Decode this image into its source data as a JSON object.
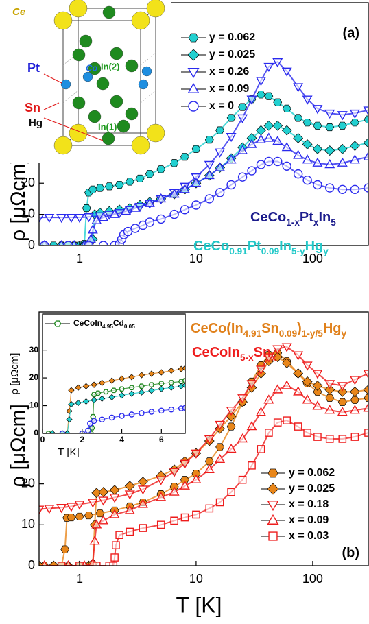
{
  "crystal": {
    "labels": [
      "Ce",
      "Co",
      "Pt",
      "In(2)",
      "Sn",
      "Hg",
      "In(1)"
    ]
  },
  "chart_data": [
    {
      "type": "scatter",
      "panel_label": "(a)",
      "ylabel": "ρ [μΩcm]",
      "log_x": true,
      "xlim": [
        0.45,
        300
      ],
      "ylim": [
        0,
        78
      ],
      "xticks": [
        1,
        10,
        100
      ],
      "yticks": [
        0,
        10,
        20
      ],
      "annotations": [
        {
          "parts": [
            "CeCo",
            "1-x",
            "Pt",
            "x",
            "In",
            "5"
          ],
          "color": "#1c1c8c"
        },
        {
          "parts": [
            "CeCo",
            "0.91",
            "Pt",
            "0.09",
            "In",
            "5-y",
            "Hg",
            "y"
          ],
          "color": "#22c8c8"
        }
      ],
      "series": [
        {
          "name": "y = 0.062",
          "color": "#22d0d0",
          "marker": "hexagon",
          "filled": true,
          "x": [
            0.5,
            0.6,
            0.7,
            0.8,
            0.9,
            1.0,
            1.1,
            1.15,
            1.2,
            1.3,
            1.5,
            1.8,
            2.2,
            2.7,
            3.3,
            4,
            5,
            6.5,
            8,
            10,
            13,
            16,
            20,
            25,
            30,
            36,
            42,
            50,
            60,
            75,
            90,
            110,
            140,
            180,
            230,
            300
          ],
          "values": [
            0,
            0,
            0,
            0,
            0,
            0,
            0.5,
            12,
            17,
            18,
            18.5,
            19,
            19.5,
            20.5,
            21.5,
            23,
            24.5,
            26.5,
            28.5,
            31,
            34,
            37,
            41,
            44.5,
            47,
            48.5,
            48,
            46,
            44,
            41,
            39.5,
            38.5,
            38,
            38.5,
            39.5,
            40.5
          ]
        },
        {
          "name": "y = 0.025",
          "color": "#22d0d0",
          "marker": "diamond",
          "filled": true,
          "x": [
            0.5,
            0.7,
            0.9,
            1.1,
            1.2,
            1.3,
            1.35,
            1.5,
            1.8,
            2.2,
            2.7,
            3.3,
            4,
            5,
            6.5,
            8,
            10,
            13,
            16,
            20,
            25,
            30,
            36,
            42,
            50,
            60,
            75,
            90,
            110,
            140,
            180,
            230,
            300
          ],
          "values": [
            0,
            0,
            0,
            0,
            0.5,
            2,
            10,
            10.5,
            11,
            11.5,
            12,
            13,
            14,
            15,
            16.5,
            18,
            20,
            22.5,
            25,
            28,
            31.5,
            34.5,
            37,
            38.5,
            38.5,
            37,
            34.5,
            32.5,
            31,
            30.5,
            31,
            32,
            33
          ]
        },
        {
          "name": "x = 0.26",
          "color": "#2a2aee",
          "marker": "tri-down",
          "filled": false,
          "x": [
            0.45,
            0.55,
            0.7,
            0.85,
            1.0,
            1.2,
            1.5,
            1.8,
            2.2,
            2.7,
            3.3,
            4,
            5,
            6.5,
            8,
            10,
            13,
            16,
            20,
            25,
            30,
            36,
            42,
            50,
            60,
            75,
            90,
            110,
            140,
            180,
            230,
            300
          ],
          "values": [
            9,
            9,
            9,
            9,
            9,
            9.2,
            9.5,
            10,
            10.5,
            11.5,
            12.5,
            13.5,
            15,
            17,
            19,
            22,
            26,
            30,
            35,
            41,
            47,
            53,
            57.5,
            59,
            56,
            51,
            47,
            44,
            42.5,
            42,
            42.5,
            43.5
          ]
        },
        {
          "name": "x = 0.09",
          "color": "#2a2aee",
          "marker": "tri-up",
          "filled": false,
          "x": [
            0.5,
            0.7,
            0.9,
            1.1,
            1.2,
            1.25,
            1.3,
            1.4,
            1.6,
            2,
            2.5,
            3,
            4,
            5,
            6.5,
            8,
            10,
            13,
            16,
            20,
            25,
            30,
            36,
            42,
            50,
            60,
            75,
            90,
            110,
            140,
            180,
            230,
            300
          ],
          "values": [
            0,
            0,
            0,
            0,
            0.5,
            2,
            5,
            8,
            9,
            10,
            11,
            12,
            13.5,
            15,
            16.5,
            18,
            20,
            22.5,
            25,
            27.5,
            30.5,
            32.5,
            34,
            34.5,
            33.5,
            31.5,
            29,
            27.5,
            26.5,
            26,
            26.5,
            27.5,
            28.5
          ]
        },
        {
          "name": "x = 0",
          "color": "#2a2aee",
          "marker": "circle",
          "filled": false,
          "x": [
            0.5,
            0.8,
            1.2,
            1.6,
            2,
            2.2,
            2.3,
            2.4,
            2.6,
            3,
            3.5,
            4,
            5,
            6.5,
            8,
            10,
            13,
            16,
            20,
            25,
            30,
            36,
            42,
            50,
            60,
            75,
            90,
            110,
            140,
            180,
            230,
            300
          ],
          "values": [
            0,
            0,
            0,
            0,
            0,
            0.5,
            2,
            3.5,
            4.5,
            5.5,
            6.5,
            7.5,
            8.5,
            10,
            11.5,
            13,
            15,
            17,
            19.5,
            22,
            24,
            26,
            27,
            27,
            25.5,
            23,
            21,
            19.5,
            18.5,
            18,
            18,
            18.5
          ]
        }
      ]
    },
    {
      "type": "scatter",
      "panel_label": "(b)",
      "ylabel": "ρ [μΩcm]",
      "xlabel": "T [K]",
      "log_x": true,
      "xlim": [
        0.45,
        300
      ],
      "ylim": [
        0,
        62
      ],
      "xticks": [
        1,
        10,
        100
      ],
      "yticks": [
        0,
        10,
        20
      ],
      "annotations": [
        {
          "parts": [
            "CeCo(In",
            "4.91",
            "Sn",
            "0.09",
            ")",
            "1-y/5",
            "Hg",
            "y"
          ],
          "color": "#e0801a"
        },
        {
          "parts": [
            "CeCoIn",
            "5-x",
            "Sn",
            "x"
          ],
          "color": "#ee1c1c"
        }
      ],
      "series": [
        {
          "name": "y = 0.062",
          "color": "#e8861a",
          "marker": "hexagon",
          "filled": true,
          "x": [
            0.5,
            0.6,
            0.7,
            0.75,
            0.78,
            0.85,
            1,
            1.2,
            1.5,
            2,
            2.7,
            3.5,
            5,
            6.5,
            8,
            10,
            13,
            16,
            20,
            25,
            30,
            36,
            42,
            50,
            60,
            75,
            90,
            110,
            140,
            180,
            230,
            300
          ],
          "values": [
            0,
            0,
            0,
            4,
            11.7,
            11.8,
            12,
            12.3,
            12.8,
            13.5,
            14.5,
            15.5,
            17.5,
            19.3,
            21,
            22.5,
            25.5,
            29,
            34,
            40,
            45,
            49,
            51.5,
            52,
            50,
            47,
            44.5,
            42.5,
            41,
            40,
            40.5,
            41
          ]
        },
        {
          "name": "y = 0.025",
          "color": "#e8861a",
          "marker": "diamond",
          "filled": true,
          "x": [
            0.45,
            0.6,
            0.8,
            1,
            1.2,
            1.3,
            1.35,
            1.4,
            1.6,
            2,
            2.7,
            3.5,
            5,
            6.5,
            8,
            10,
            13,
            16,
            20,
            25,
            30,
            36,
            42,
            50,
            60,
            75,
            90,
            110,
            140,
            180,
            230,
            300
          ],
          "values": [
            0,
            0,
            0,
            0,
            0,
            0.5,
            10,
            17.8,
            18,
            18.5,
            19.5,
            20.5,
            22,
            23.5,
            25.5,
            27.5,
            30.5,
            33.5,
            36.5,
            40,
            43.5,
            47,
            50,
            51,
            49.5,
            47,
            45,
            44,
            43,
            42.5,
            42.5,
            43
          ]
        },
        {
          "name": "x = 0.18",
          "color": "#ee1c1c",
          "marker": "tri-down",
          "filled": false,
          "x": [
            0.45,
            0.55,
            0.7,
            0.85,
            1,
            1.3,
            1.6,
            2,
            2.7,
            3.5,
            5,
            6.5,
            8,
            10,
            13,
            16,
            20,
            25,
            30,
            36,
            42,
            50,
            60,
            75,
            90,
            110,
            140,
            180,
            230,
            300
          ],
          "values": [
            13.8,
            14,
            14.2,
            14.5,
            15,
            15.5,
            16,
            16.7,
            17.5,
            18.7,
            21,
            23,
            25,
            27.5,
            31,
            34.5,
            38,
            41,
            44.5,
            48,
            51,
            53,
            53.5,
            51.5,
            49,
            47,
            44.5,
            44,
            45.5,
            47
          ]
        },
        {
          "name": "x = 0.09",
          "color": "#ee1c1c",
          "marker": "tri-up",
          "filled": false,
          "x": [
            0.5,
            0.8,
            1.1,
            1.3,
            1.35,
            1.4,
            1.6,
            2,
            2.7,
            3.5,
            5,
            6.5,
            8,
            10,
            13,
            16,
            20,
            25,
            30,
            36,
            42,
            50,
            60,
            75,
            90,
            110,
            140,
            180,
            230,
            300
          ],
          "values": [
            0,
            0,
            0,
            0.5,
            6,
            10,
            11,
            12.5,
            13.5,
            15,
            16.7,
            18,
            19.5,
            21,
            23.5,
            26,
            28.5,
            31,
            34,
            37.5,
            40.5,
            43,
            44,
            42.5,
            40.5,
            39,
            38,
            37.5,
            38,
            38.5
          ]
        },
        {
          "name": "x = 0.03",
          "color": "#ee1c1c",
          "marker": "square",
          "filled": false,
          "x": [
            0.7,
            1,
            1.4,
            1.8,
            1.95,
            2,
            2.05,
            2.2,
            2.7,
            3.5,
            5,
            6.5,
            8,
            10,
            13,
            16,
            20,
            25,
            30,
            36,
            42,
            50,
            60,
            75,
            90,
            110,
            140,
            180,
            230,
            300
          ],
          "values": [
            0,
            0,
            0,
            0,
            0,
            2,
            5,
            7.5,
            8.3,
            9.2,
            10,
            11,
            11.8,
            12.5,
            14,
            15.5,
            18,
            21,
            24.5,
            28.5,
            32.5,
            35,
            35.5,
            34,
            32.5,
            31.5,
            31,
            31,
            31.5,
            32.5
          ]
        }
      ]
    },
    {
      "type": "scatter",
      "inset": true,
      "ylabel": "ρ [μΩcm]",
      "xlabel": "T [K]",
      "xlim": [
        0,
        7.2
      ],
      "ylim": [
        0,
        43
      ],
      "xticks": [
        0,
        2,
        4,
        6
      ],
      "yticks": [
        0,
        10,
        20,
        30
      ],
      "series": [
        {
          "name_parts": [
            "CeCoIn",
            "4.95",
            "Cd",
            "0.05"
          ],
          "color": "#228822",
          "marker": "hexagon",
          "filled": false,
          "x": [
            0.3,
            1,
            2,
            2.45,
            2.5,
            2.55,
            2.6,
            2.8,
            3.2,
            3.6,
            4,
            4.5,
            5,
            5.5,
            6,
            6.5,
            7,
            7.2
          ],
          "values": [
            0,
            0,
            0,
            0,
            2,
            6,
            14,
            14.5,
            15,
            15.5,
            16,
            16.5,
            17,
            17.5,
            18,
            18.3,
            18.7,
            19
          ]
        },
        {
          "color": "#e8861a",
          "marker": "diamond",
          "filled": true,
          "x": [
            0.5,
            1,
            1.25,
            1.35,
            1.45,
            1.8,
            2.2,
            2.6,
            3,
            3.5,
            4,
            4.5,
            5,
            5.5,
            6,
            6.5,
            7,
            7.2
          ],
          "values": [
            0,
            0,
            0,
            8,
            15.5,
            16.5,
            17,
            17.5,
            18.2,
            19,
            19.7,
            20.3,
            21,
            21.5,
            22,
            22.6,
            23.2,
            23.5
          ]
        },
        {
          "color": "#22d0d0",
          "marker": "diamond",
          "filled": true,
          "x": [
            0.5,
            1,
            1.25,
            1.35,
            1.45,
            1.8,
            2.2,
            2.6,
            3,
            3.5,
            4,
            4.5,
            5,
            5.5,
            6,
            6.5,
            7,
            7.2
          ],
          "values": [
            0,
            0,
            0,
            5,
            10.5,
            11,
            11.5,
            12,
            12.5,
            13,
            13.7,
            14.3,
            14.8,
            15.4,
            16,
            16.5,
            17,
            17.3
          ]
        },
        {
          "color": "#2a2aee",
          "marker": "circle",
          "filled": false,
          "x": [
            1,
            2,
            2.3,
            2.4,
            2.6,
            3,
            3.5,
            4,
            4.5,
            5,
            5.5,
            6,
            6.5,
            7,
            7.2
          ],
          "values": [
            0,
            0,
            1,
            3.5,
            4.5,
            5,
            5.7,
            6.3,
            6.8,
            7.3,
            7.8,
            8.2,
            8.6,
            9,
            9.2
          ]
        }
      ]
    }
  ]
}
